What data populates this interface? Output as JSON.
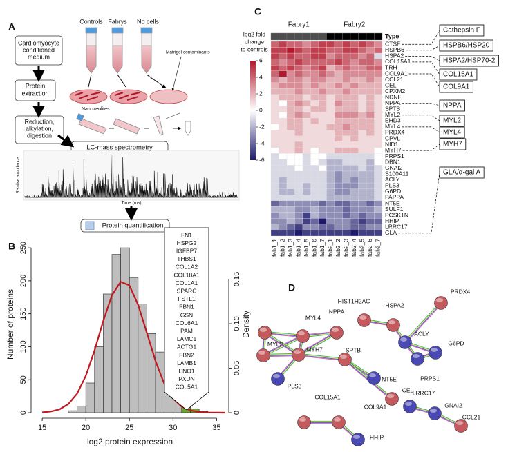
{
  "panel_labels": [
    "A",
    "B",
    "C",
    "D"
  ],
  "workflow": {
    "tubes": [
      "Controls",
      "Fabrys",
      "No cells"
    ],
    "contaminant_note": "Matrigel contaminants",
    "steps": [
      [
        "Cardiomyocyte",
        "conditioned",
        "medium"
      ],
      [
        "Protein",
        "extraction"
      ],
      [
        "Reduction,",
        "alkylation,",
        "digestion"
      ]
    ],
    "nanozeolites": "Nanozeolites",
    "lcms": "LC-mass spectrometry",
    "spectrum_ylabel": "Relative abundance",
    "spectrum_xlabel": "Time (ms)",
    "quant": "Protein quantification"
  },
  "chart_data": [
    {
      "type": "histogram",
      "xlabel": "log2 protein expression",
      "ylabel": "Number of proteins",
      "y2label": "Density",
      "bins": [
        18,
        19,
        20,
        21,
        22,
        23,
        24,
        25,
        26,
        27,
        28,
        29,
        30,
        31,
        32,
        33,
        34
      ],
      "values": [
        3,
        10,
        45,
        100,
        180,
        240,
        250,
        205,
        165,
        120,
        92,
        65,
        35,
        15,
        6,
        2
      ],
      "colors": [
        "#bebebe",
        "#bebebe",
        "#bebebe",
        "#bebebe",
        "#bebebe",
        "#bebebe",
        "#bebebe",
        "#bebebe",
        "#bebebe",
        "#bebebe",
        "#bebebe",
        "#bebebe",
        "#bebebe",
        "#6aa832",
        "#6aa832",
        "#bebebe"
      ],
      "xlim": [
        14.2,
        36
      ],
      "xticks": [
        15,
        20,
        25,
        30,
        35
      ],
      "ylim": [
        0,
        270
      ],
      "yticks": [
        0,
        50,
        100,
        150,
        200,
        250
      ],
      "y2lim": [
        0,
        0.2
      ],
      "y2ticks": [
        0,
        0.05,
        {
          "value": 0.1,
          "label": "0.10"
        },
        0.15
      ],
      "density": {
        "color": "#c0191f",
        "axis": "y2",
        "x": [
          15,
          16,
          17,
          18,
          19,
          20,
          21,
          22,
          23,
          24,
          25,
          26,
          27,
          28,
          29,
          30,
          31,
          32,
          33,
          34,
          35,
          36
        ],
        "values": [
          0.0004,
          0.0013,
          0.0038,
          0.0097,
          0.0214,
          0.0415,
          0.07,
          0.103,
          0.132,
          0.147,
          0.143,
          0.121,
          0.0897,
          0.0578,
          0.0325,
          0.0159,
          0.0068,
          0.0025,
          0.0008,
          0.0002,
          0.0001,
          0
        ]
      },
      "annotation": [
        "FN1",
        "HSPG2",
        "IGFBP7",
        "THBS1",
        "COL1A2",
        "COL18A1",
        "COL1A1",
        "SPARC",
        "FSTL1",
        "FBN1",
        "GSN",
        "COL6A1",
        "PAM",
        "LAMC1",
        "ACTG1",
        "FBN2",
        "LAMB1",
        "ENO1",
        "PXDN",
        "COL5A1"
      ]
    },
    {
      "type": "heatmap",
      "groups": [
        "Fabry1",
        "Fabry2"
      ],
      "group_colors": [
        "#4d4d4d",
        "#000000"
      ],
      "type_label": "Type",
      "columns": [
        "fab1_1",
        "fab1_2",
        "fab1_3",
        "fab1_4",
        "fab1_5",
        "fab1_6",
        "fab1_7",
        "fab2_1",
        "fab2_2",
        "fab2_3",
        "fab2_4",
        "fab2_5",
        "fab2_6",
        "fab2_7"
      ],
      "rows": [
        "CTSF",
        "HSPB6",
        "HSPA2",
        "COL15A1",
        "TRH",
        "COL9A1",
        "CCL21",
        "CEL",
        "CPXM2",
        "NDNF",
        "NPPA",
        "SPTB",
        "MYL2",
        "EHD3",
        "MYL4",
        "PRDX4",
        "CPVL",
        "NID1",
        "MYH7",
        "PRPS1",
        "DBN1",
        "GNAI2",
        "S100A11",
        "ACLY",
        "PLS3",
        "G6PD",
        "PAPPA",
        "NT5E",
        "SULF1",
        "PCSK1N",
        "HHIP",
        "LRRC17",
        "GLA"
      ],
      "values": [
        [
          4,
          5,
          4,
          4,
          3,
          4,
          5,
          5,
          4,
          5,
          4,
          5,
          4,
          3
        ],
        [
          5,
          5,
          6,
          5,
          4,
          5,
          5,
          4,
          4,
          5,
          5,
          4,
          3,
          4
        ],
        [
          5,
          4,
          5,
          4,
          4,
          5,
          5,
          3,
          4,
          4,
          4,
          3,
          4,
          -1
        ],
        [
          4,
          3,
          4,
          5,
          4,
          4,
          4,
          4,
          5,
          4,
          3,
          4,
          4,
          3
        ],
        [
          5,
          4,
          5,
          4,
          3,
          4,
          5,
          2,
          3,
          4,
          3,
          3,
          4,
          4
        ],
        [
          4,
          6,
          3,
          4,
          3,
          3,
          4,
          3,
          2,
          3,
          3,
          3,
          3,
          3
        ],
        [
          3,
          2,
          3,
          3,
          2,
          3,
          3,
          2,
          2,
          3,
          2,
          2,
          3,
          2
        ],
        [
          2,
          3,
          3,
          3,
          2,
          3,
          2,
          2,
          3,
          2,
          3,
          2,
          2,
          2
        ],
        [
          2,
          2,
          2,
          3,
          2,
          2,
          3,
          2,
          2,
          3,
          2,
          2,
          2,
          2
        ],
        [
          1,
          2,
          2,
          2,
          1,
          2,
          2,
          1,
          2,
          2,
          2,
          1,
          2,
          1
        ],
        [
          1,
          0,
          2,
          3,
          2,
          1,
          2,
          1,
          3,
          2,
          2,
          1,
          2,
          1
        ],
        [
          1,
          1,
          2,
          2,
          1,
          2,
          2,
          1,
          2,
          2,
          2,
          1,
          2,
          1
        ],
        [
          1,
          0,
          2,
          3,
          2,
          1,
          1,
          1,
          3,
          3,
          3,
          2,
          3,
          1
        ],
        [
          1,
          1,
          2,
          2,
          1,
          2,
          1,
          1,
          2,
          2,
          2,
          2,
          2,
          1
        ],
        [
          0,
          1,
          2,
          2,
          1,
          1,
          1,
          2,
          2,
          3,
          2,
          2,
          2,
          1
        ],
        [
          1,
          1,
          1,
          2,
          1,
          1,
          1,
          1,
          2,
          2,
          2,
          1,
          2,
          1
        ],
        [
          1,
          1,
          1,
          1,
          1,
          1,
          1,
          1,
          2,
          1,
          2,
          1,
          1,
          1
        ],
        [
          1,
          1,
          1,
          2,
          1,
          1,
          1,
          1,
          1,
          1,
          1,
          1,
          1,
          1
        ],
        [
          0,
          1,
          1,
          2,
          1,
          0,
          1,
          1,
          2,
          2,
          2,
          1,
          1,
          0
        ],
        [
          -1,
          0,
          0,
          0,
          -1,
          0,
          0,
          -1,
          -1,
          -1,
          -1,
          -1,
          -1,
          0
        ],
        [
          -1,
          -1,
          0,
          0,
          -1,
          0,
          -1,
          -2,
          -2,
          -1,
          -1,
          -1,
          -2,
          0
        ],
        [
          -1,
          -1,
          -1,
          0,
          -1,
          -1,
          0,
          -2,
          -2,
          -2,
          -2,
          -1,
          -2,
          -1
        ],
        [
          -1,
          -1,
          -1,
          -1,
          -1,
          -1,
          -1,
          -2,
          -3,
          -2,
          -2,
          -2,
          -2,
          -1
        ],
        [
          -1,
          -2,
          -1,
          -1,
          -1,
          -1,
          -1,
          -2,
          -3,
          -2,
          -3,
          -2,
          -2,
          -1
        ],
        [
          -1,
          -2,
          -1,
          -1,
          -2,
          -1,
          -1,
          -2,
          -3,
          -3,
          -3,
          -2,
          -2,
          -1
        ],
        [
          -1,
          -2,
          -2,
          -1,
          -2,
          -1,
          -1,
          -2,
          -3,
          -3,
          -2,
          -2,
          -2,
          -1
        ],
        [
          -1,
          -1,
          -1,
          -1,
          -1,
          -1,
          -1,
          -2,
          -2,
          -2,
          -2,
          -2,
          -2,
          -1
        ],
        [
          -4,
          -3,
          -3,
          -3,
          -3,
          -3,
          -4,
          -3,
          -4,
          -4,
          -3,
          -3,
          -4,
          -3
        ],
        [
          -2,
          -2,
          -2,
          -3,
          -3,
          -2,
          -3,
          -3,
          -3,
          -4,
          -3,
          -3,
          -3,
          -2
        ],
        [
          -3,
          -2,
          -2,
          -3,
          -5,
          -2,
          -3,
          -3,
          -3,
          -4,
          -3,
          -4,
          -3,
          -3
        ],
        [
          -3,
          -3,
          -2,
          -3,
          -5,
          -4,
          -6,
          -3,
          -3,
          -3,
          -4,
          -5,
          -4,
          -4
        ],
        [
          -2,
          -3,
          -4,
          -5,
          -3,
          -3,
          -4,
          -4,
          -3,
          -3,
          -4,
          -4,
          -3,
          -3
        ],
        [
          -5,
          -5,
          -5,
          -6,
          -5,
          -5,
          -5,
          -5,
          -5,
          -5,
          -6,
          -5,
          -5,
          -5
        ]
      ],
      "colorscale": [
        "#1c1a6b",
        "#ffffff",
        "#b2182b"
      ],
      "zlim": [
        -6,
        6
      ],
      "zticks": [
        6,
        4,
        2,
        0,
        -2,
        -4,
        -6
      ],
      "colorbar_title": [
        "log2 fold",
        "change",
        "to controls"
      ],
      "callouts": [
        "Cathepsin F",
        "HSPB6/HSP20",
        "HSPA2/HSP70-2",
        "COL15A1",
        "COL9A1",
        "NPPA",
        "MYL2",
        "MYL4",
        "MYH7",
        "GLA/α-gal A"
      ]
    }
  ],
  "network": {
    "nodes": [
      {
        "label": "NPPA",
        "color": "#c45a5e"
      },
      {
        "label": "MYL4",
        "color": "#c45a5e"
      },
      {
        "label": "MYL2",
        "color": "#c45a5e"
      },
      {
        "label": "MYH7",
        "color": "#c45a5e"
      },
      {
        "label": "PLS3",
        "color": "#4a48b2"
      },
      {
        "label": "SPTB",
        "color": "#c45a5e"
      },
      {
        "label": "NT5E",
        "color": "#4a48b2"
      },
      {
        "label": "CEL",
        "color": "#c45a5e"
      },
      {
        "label": "HIST1H2AC",
        "color": "#c45a5e"
      },
      {
        "label": "HSPA2",
        "color": "#c45a5e"
      },
      {
        "label": "ACLY",
        "color": "#4a48b2"
      },
      {
        "label": "PRDX4",
        "color": "#c45a5e"
      },
      {
        "label": "G6PD",
        "color": "#4a48b2"
      },
      {
        "label": "PRPS1",
        "color": "#4a48b2"
      },
      {
        "label": "COL15A1",
        "color": "#c45a5e"
      },
      {
        "label": "COL9A1",
        "color": "#c45a5e"
      },
      {
        "label": "HHIP",
        "color": "#4a48b2"
      },
      {
        "label": "LRRC17",
        "color": "#4a48b2"
      },
      {
        "label": "GNAI2",
        "color": "#4a48b2"
      },
      {
        "label": "CCL21",
        "color": "#c45a5e"
      }
    ]
  }
}
